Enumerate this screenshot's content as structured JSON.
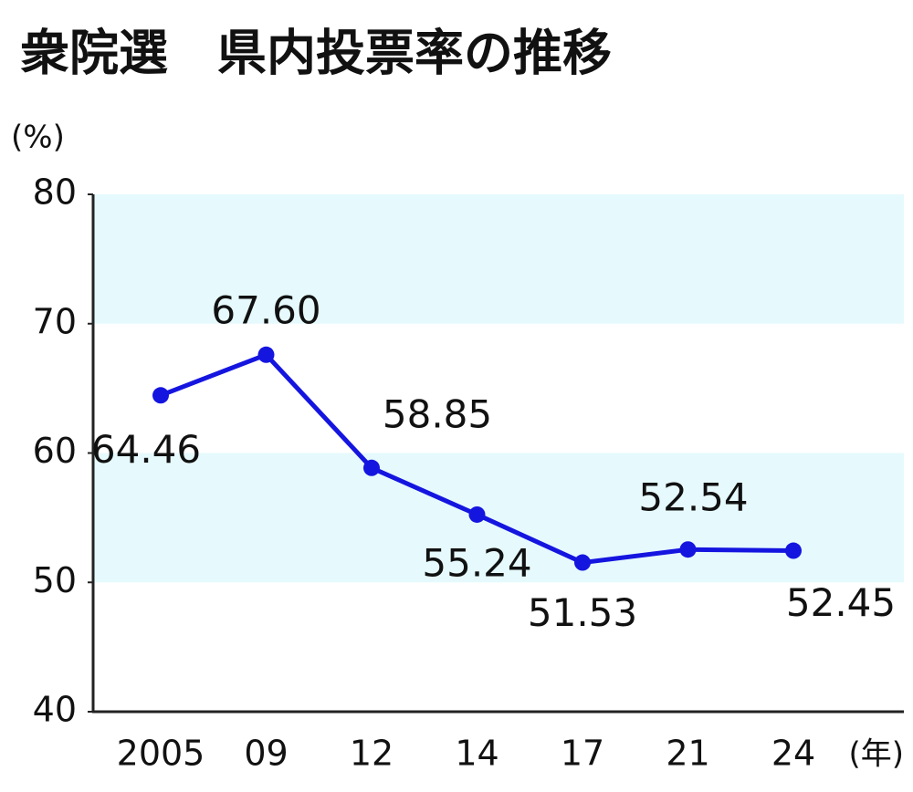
{
  "chart_data": {
    "type": "line",
    "title": "衆院選　県内投票率の推移",
    "y_label": "(%)",
    "x_label": "(年)",
    "categories": [
      "2005",
      "09",
      "12",
      "14",
      "17",
      "21",
      "24"
    ],
    "values": [
      64.46,
      67.6,
      58.85,
      55.24,
      51.53,
      52.54,
      52.45
    ],
    "value_labels": [
      "64.46",
      "67.60",
      "58.85",
      "55.24",
      "51.53",
      "52.54",
      "52.45"
    ],
    "color": "#1515e0",
    "band_color": "#e6fafd",
    "ylim": [
      40,
      80
    ],
    "yticks": [
      40,
      50,
      60,
      70,
      80
    ]
  }
}
